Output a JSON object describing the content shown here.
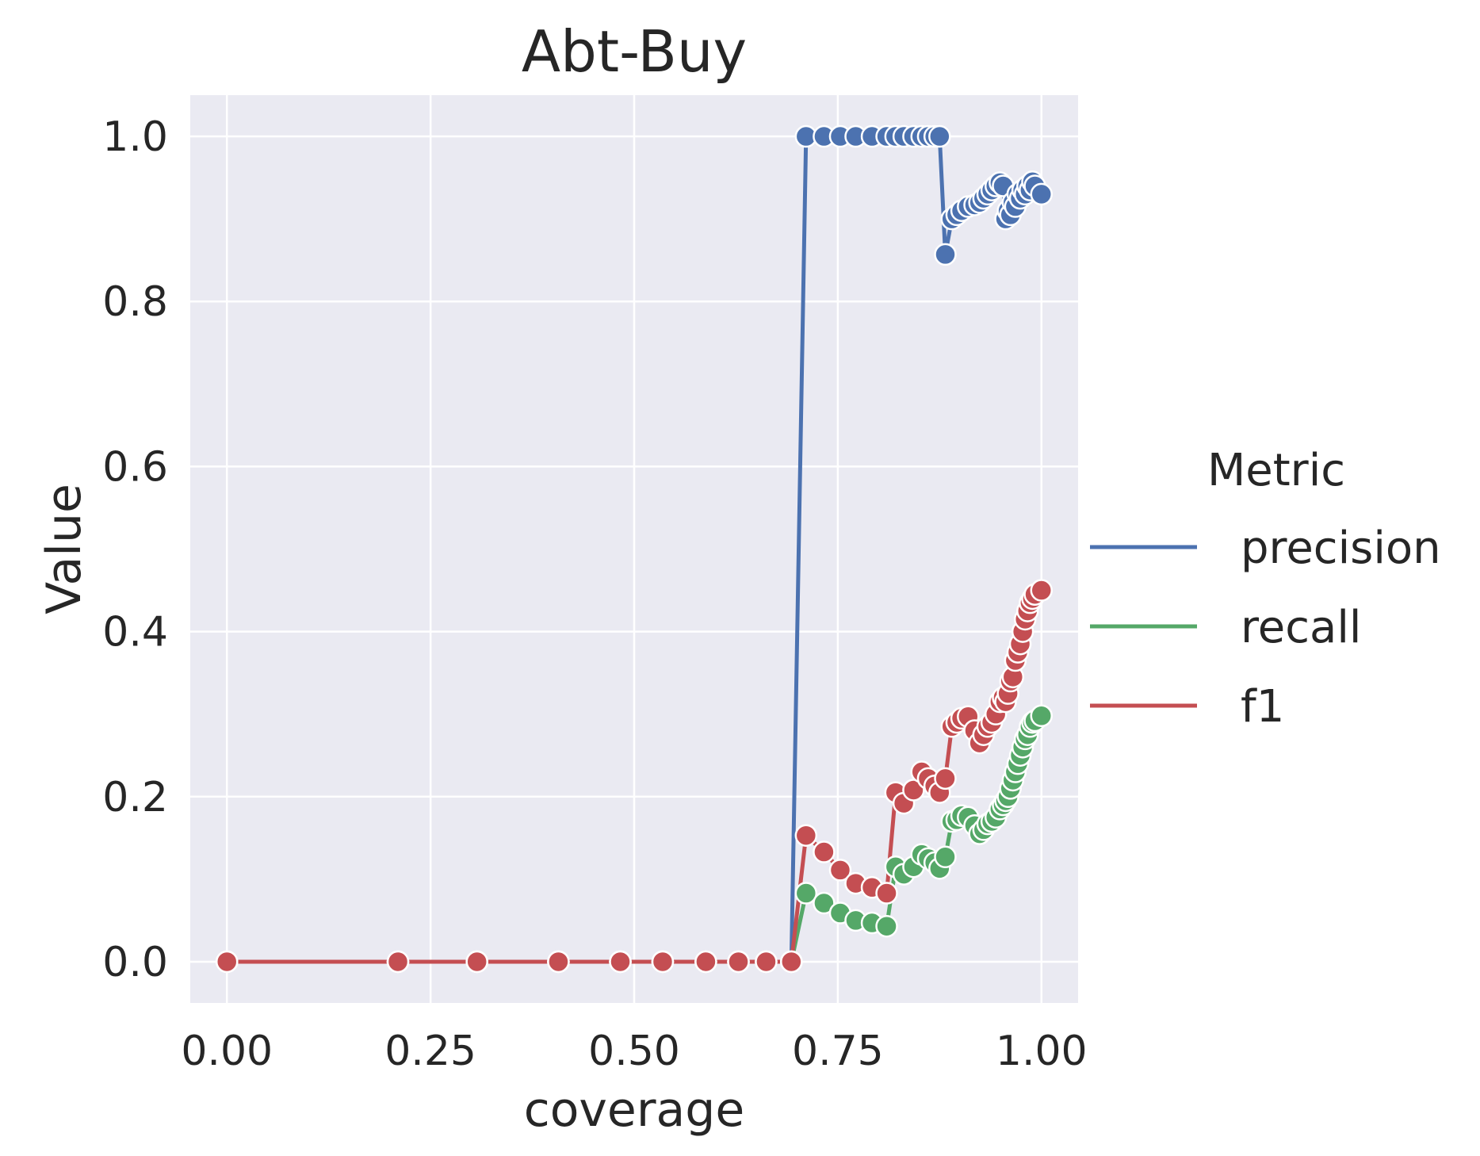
{
  "chart_data": {
    "type": "line",
    "title": "Abt-Buy",
    "xlabel": "coverage",
    "ylabel": "Value",
    "xlim": [
      -0.045,
      1.045
    ],
    "ylim": [
      -0.05,
      1.05
    ],
    "xticks": [
      0.0,
      0.25,
      0.5,
      0.75,
      1.0
    ],
    "xtick_labels": [
      "0.00",
      "0.25",
      "0.50",
      "0.75",
      "1.00"
    ],
    "yticks": [
      0.0,
      0.2,
      0.4,
      0.6,
      0.8,
      1.0
    ],
    "ytick_labels": [
      "0.0",
      "0.2",
      "0.4",
      "0.6",
      "0.8",
      "1.0"
    ],
    "grid": true,
    "background": "#EAEAF2",
    "legend": {
      "title": "Metric",
      "placement": "right-outside",
      "entries": [
        "precision",
        "recall",
        "f1"
      ]
    },
    "series": [
      {
        "name": "precision",
        "color": "#4C72B0",
        "x": [
          0.0,
          0.21,
          0.307,
          0.407,
          0.483,
          0.535,
          0.588,
          0.628,
          0.662,
          0.693,
          0.711,
          0.733,
          0.753,
          0.772,
          0.792,
          0.81,
          0.821,
          0.831,
          0.843,
          0.853,
          0.861,
          0.869,
          0.875,
          0.882,
          0.89,
          0.896,
          0.902,
          0.91,
          0.918,
          0.924,
          0.929,
          0.934,
          0.939,
          0.944,
          0.949,
          0.953,
          0.956,
          0.959,
          0.962,
          0.965,
          0.968,
          0.971,
          0.974,
          0.977,
          0.98,
          0.983,
          0.986,
          0.989,
          0.992,
          1.0
        ],
        "y": [
          0.0,
          0.0,
          0.0,
          0.0,
          0.0,
          0.0,
          0.0,
          0.0,
          0.0,
          0.0,
          1.0,
          1.0,
          1.0,
          1.0,
          1.0,
          1.0,
          1.0,
          1.0,
          1.0,
          1.0,
          1.0,
          1.0,
          1.0,
          0.857,
          0.9,
          0.905,
          0.91,
          0.915,
          0.917,
          0.92,
          0.925,
          0.93,
          0.935,
          0.94,
          0.944,
          0.94,
          0.9,
          0.91,
          0.905,
          0.92,
          0.915,
          0.93,
          0.925,
          0.935,
          0.93,
          0.94,
          0.935,
          0.945,
          0.94,
          0.93
        ]
      },
      {
        "name": "recall",
        "color": "#55A868",
        "x": [
          0.0,
          0.21,
          0.307,
          0.407,
          0.483,
          0.535,
          0.588,
          0.628,
          0.662,
          0.693,
          0.711,
          0.733,
          0.753,
          0.772,
          0.792,
          0.81,
          0.821,
          0.831,
          0.843,
          0.853,
          0.861,
          0.869,
          0.875,
          0.882,
          0.89,
          0.896,
          0.902,
          0.91,
          0.918,
          0.924,
          0.929,
          0.934,
          0.939,
          0.944,
          0.949,
          0.953,
          0.956,
          0.959,
          0.962,
          0.965,
          0.968,
          0.971,
          0.974,
          0.977,
          0.98,
          0.983,
          0.986,
          0.989,
          0.992,
          1.0
        ],
        "y": [
          0.0,
          0.0,
          0.0,
          0.0,
          0.0,
          0.0,
          0.0,
          0.0,
          0.0,
          0.0,
          0.083,
          0.071,
          0.059,
          0.05,
          0.047,
          0.043,
          0.115,
          0.106,
          0.115,
          0.13,
          0.125,
          0.12,
          0.113,
          0.127,
          0.17,
          0.172,
          0.177,
          0.175,
          0.165,
          0.155,
          0.16,
          0.167,
          0.17,
          0.175,
          0.185,
          0.19,
          0.195,
          0.2,
          0.21,
          0.22,
          0.23,
          0.24,
          0.25,
          0.26,
          0.27,
          0.275,
          0.285,
          0.29,
          0.292,
          0.298
        ]
      },
      {
        "name": "f1",
        "color": "#C44E52",
        "x": [
          0.0,
          0.21,
          0.307,
          0.407,
          0.483,
          0.535,
          0.588,
          0.628,
          0.662,
          0.693,
          0.711,
          0.733,
          0.753,
          0.772,
          0.792,
          0.81,
          0.821,
          0.831,
          0.843,
          0.853,
          0.861,
          0.869,
          0.875,
          0.882,
          0.89,
          0.896,
          0.902,
          0.91,
          0.918,
          0.924,
          0.929,
          0.934,
          0.939,
          0.944,
          0.949,
          0.953,
          0.956,
          0.959,
          0.962,
          0.965,
          0.968,
          0.971,
          0.974,
          0.977,
          0.98,
          0.983,
          0.986,
          0.989,
          0.992,
          1.0
        ],
        "y": [
          0.0,
          0.0,
          0.0,
          0.0,
          0.0,
          0.0,
          0.0,
          0.0,
          0.0,
          0.0,
          0.153,
          0.133,
          0.111,
          0.095,
          0.09,
          0.083,
          0.205,
          0.192,
          0.208,
          0.23,
          0.222,
          0.213,
          0.205,
          0.222,
          0.285,
          0.29,
          0.295,
          0.297,
          0.28,
          0.265,
          0.275,
          0.285,
          0.29,
          0.3,
          0.315,
          0.32,
          0.315,
          0.325,
          0.34,
          0.345,
          0.365,
          0.375,
          0.385,
          0.4,
          0.415,
          0.425,
          0.435,
          0.44,
          0.445,
          0.45
        ]
      }
    ]
  }
}
